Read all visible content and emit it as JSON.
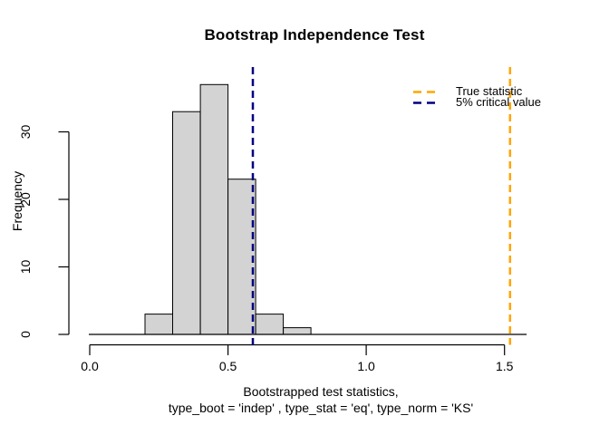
{
  "chart_data": {
    "type": "bar",
    "subtype": "histogram",
    "title": "Bootstrap Independence Test",
    "ylabel": "Frequency",
    "xlabel_line1": "Bootstrapped test statistics,",
    "xlabel_line2": "type_boot = 'indep' , type_stat = 'eq', type_norm = 'KS'",
    "bins": {
      "breaks": [
        0.2,
        0.3,
        0.4,
        0.5,
        0.6,
        0.7,
        0.8
      ],
      "counts": [
        3,
        33,
        37,
        23,
        3,
        1
      ]
    },
    "x_ticks": {
      "values": [
        0,
        0.5,
        1.0,
        1.5
      ],
      "labels": [
        "0.0",
        "0.5",
        "1.0",
        "1.5"
      ]
    },
    "y_ticks": {
      "values": [
        0,
        10,
        20,
        30
      ],
      "labels": [
        "0",
        "10",
        "20",
        "30"
      ]
    },
    "xlim": [
      0,
      1.58
    ],
    "ylim": [
      0,
      38
    ],
    "grid": false,
    "legend_position": "top-right",
    "baseline": {
      "y": 0,
      "x_from": 0,
      "x_to": 1.58
    },
    "vlines": [
      {
        "name": "true-statistic",
        "value": 1.52,
        "color": "#FFA500",
        "label": "True statistic"
      },
      {
        "name": "critical-value",
        "value": 0.59,
        "color": "#000080",
        "label": "5% critical value"
      }
    ],
    "bar_fill": "#D3D3D3",
    "bar_stroke": "#000000",
    "axis_color": "#000000"
  }
}
